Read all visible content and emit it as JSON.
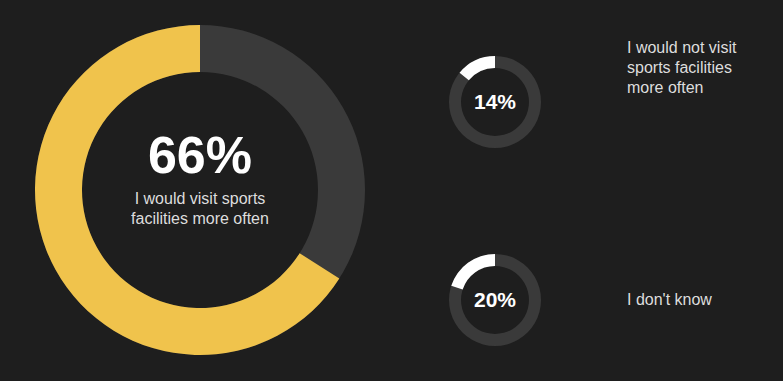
{
  "chart_data": {
    "type": "donut",
    "categories": [
      "I would visit sports facilities more often",
      "I would not visit sports facilities more often",
      "I don't know"
    ],
    "values": [
      66,
      14,
      20
    ],
    "value_labels": [
      "66%",
      "14%",
      "20%"
    ],
    "colors": [
      "#f0c34c",
      "#ffffff",
      "#ffffff"
    ]
  }
}
